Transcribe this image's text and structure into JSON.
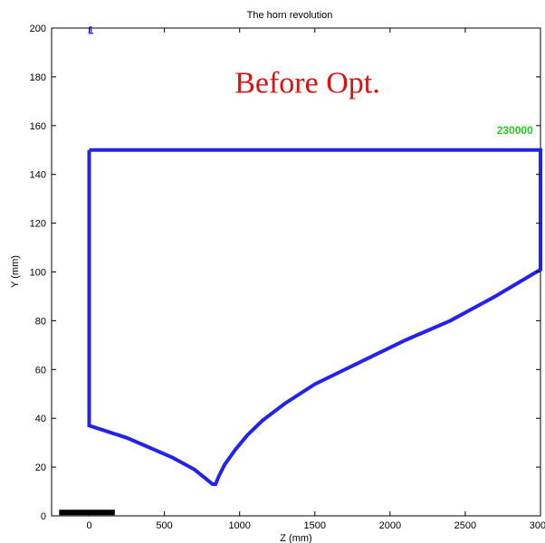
{
  "chart_data": {
    "type": "line",
    "title": "The horn revolution",
    "xlabel": "Z (mm)",
    "ylabel": "Y (mm)",
    "xlim": [
      -250,
      3000
    ],
    "ylim": [
      0,
      200
    ],
    "xticks": [
      0,
      500,
      1000,
      1500,
      2000,
      2500,
      3000
    ],
    "yticks": [
      0,
      20,
      40,
      60,
      80,
      100,
      120,
      140,
      160,
      180,
      200
    ],
    "grid": false,
    "series": [
      {
        "color": "#2222ee",
        "x": [
          0,
          3000,
          3000,
          2700,
          2400,
          2100,
          1800,
          1500,
          1300,
          1150,
          1050,
          970,
          900,
          860,
          840,
          820,
          800,
          700,
          550,
          400,
          250,
          100,
          0,
          0
        ],
        "y": [
          150,
          150,
          101,
          90,
          80,
          72,
          63,
          54,
          46,
          39,
          33,
          27,
          21,
          16,
          13,
          13,
          14,
          19,
          24,
          28,
          32,
          35,
          37,
          150
        ]
      }
    ],
    "annotations": [
      {
        "text": "Before Opt.",
        "x": 1450,
        "y": 178,
        "color": "#dd1111"
      },
      {
        "text": "230000",
        "x": 2830,
        "y": 158,
        "color": "#22cc22"
      },
      {
        "text": "1",
        "x": 10,
        "y": 199,
        "color": "#2222ee"
      }
    ],
    "marker": {
      "x0": -200,
      "x1": 170,
      "y": 1.4,
      "color": "#000000"
    }
  }
}
